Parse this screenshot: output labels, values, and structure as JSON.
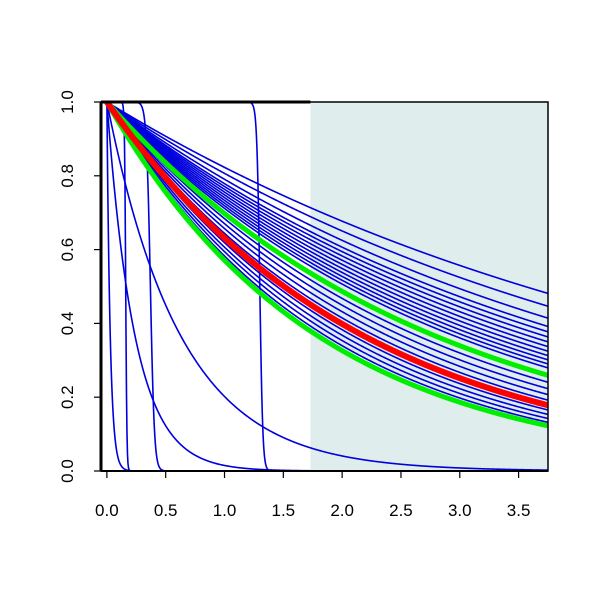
{
  "chart_data": {
    "type": "line",
    "title": "",
    "xlabel": "",
    "ylabel": "",
    "xlim": [
      -0.05,
      3.75
    ],
    "ylim": [
      0.0,
      1.0
    ],
    "x_ticks": [
      "0.0",
      "0.5",
      "1.0",
      "1.5",
      "2.0",
      "2.5",
      "3.0",
      "3.5"
    ],
    "y_ticks": [
      "0.0",
      "0.2",
      "0.4",
      "0.6",
      "0.8",
      "1.0"
    ],
    "grid": false,
    "legend": "none",
    "shaded_region": {
      "x_from": 1.73,
      "x_to": 3.75,
      "color": "#dfeded"
    },
    "colors": {
      "blue": "#0000dd",
      "red": "#ff0000",
      "green": "#00ee00",
      "axis": "#000000"
    },
    "series": [
      {
        "kind": "decay",
        "k": 0.195,
        "color": "blue",
        "width": 1.6
      },
      {
        "kind": "decay",
        "k": 0.215,
        "color": "blue",
        "width": 1.6
      },
      {
        "kind": "decay",
        "k": 0.235,
        "color": "blue",
        "width": 1.6
      },
      {
        "kind": "decay",
        "k": 0.25,
        "color": "blue",
        "width": 1.6
      },
      {
        "kind": "decay",
        "k": 0.26,
        "color": "blue",
        "width": 1.6
      },
      {
        "kind": "decay",
        "k": 0.27,
        "color": "blue",
        "width": 1.6
      },
      {
        "kind": "decay",
        "k": 0.28,
        "color": "blue",
        "width": 1.6
      },
      {
        "kind": "decay",
        "k": 0.29,
        "color": "blue",
        "width": 1.6
      },
      {
        "kind": "decay",
        "k": 0.3,
        "color": "blue",
        "width": 1.6
      },
      {
        "kind": "decay",
        "k": 0.31,
        "color": "blue",
        "width": 1.6
      },
      {
        "kind": "decay",
        "k": 0.32,
        "color": "blue",
        "width": 1.6
      },
      {
        "kind": "decay",
        "k": 0.33,
        "color": "blue",
        "width": 1.6
      },
      {
        "kind": "decay",
        "k": 0.34,
        "color": "blue",
        "width": 1.6
      },
      {
        "kind": "decay",
        "k": 0.36,
        "color": "blue",
        "width": 1.6
      },
      {
        "kind": "decay",
        "k": 0.38,
        "color": "blue",
        "width": 1.6
      },
      {
        "kind": "decay",
        "k": 0.4,
        "color": "blue",
        "width": 1.6
      },
      {
        "kind": "decay",
        "k": 0.42,
        "color": "blue",
        "width": 1.6
      },
      {
        "kind": "decay",
        "k": 0.44,
        "color": "blue",
        "width": 1.6
      },
      {
        "kind": "decay",
        "k": 0.46,
        "color": "blue",
        "width": 1.6
      },
      {
        "kind": "decay",
        "k": 0.48,
        "color": "blue",
        "width": 1.6
      },
      {
        "kind": "decay",
        "k": 0.5,
        "color": "blue",
        "width": 1.6
      },
      {
        "kind": "decay",
        "k": 0.52,
        "color": "blue",
        "width": 1.6
      },
      {
        "kind": "decay",
        "k": 0.54,
        "color": "blue",
        "width": 1.6
      },
      {
        "kind": "decay",
        "k": 0.56,
        "color": "blue",
        "width": 1.6
      },
      {
        "kind": "decay",
        "k": 1.6,
        "color": "blue",
        "width": 1.6
      },
      {
        "kind": "decay",
        "k": 4.2,
        "color": "blue",
        "width": 1.6
      },
      {
        "kind": "decay",
        "k": 35.0,
        "color": "blue",
        "width": 1.6
      },
      {
        "kind": "step",
        "t0": 0.16,
        "k": 200.0,
        "color": "blue",
        "width": 1.6
      },
      {
        "kind": "step",
        "t0": 0.37,
        "k": 60.0,
        "color": "blue",
        "width": 1.6
      },
      {
        "kind": "step",
        "t0": 1.3,
        "k": 80.0,
        "color": "blue",
        "width": 1.6
      },
      {
        "kind": "decay",
        "k": 0.36,
        "color": "green",
        "width": 5
      },
      {
        "kind": "decay",
        "k": 0.56,
        "color": "green",
        "width": 5
      },
      {
        "kind": "decay",
        "k": 0.46,
        "color": "red",
        "width": 6
      }
    ]
  }
}
